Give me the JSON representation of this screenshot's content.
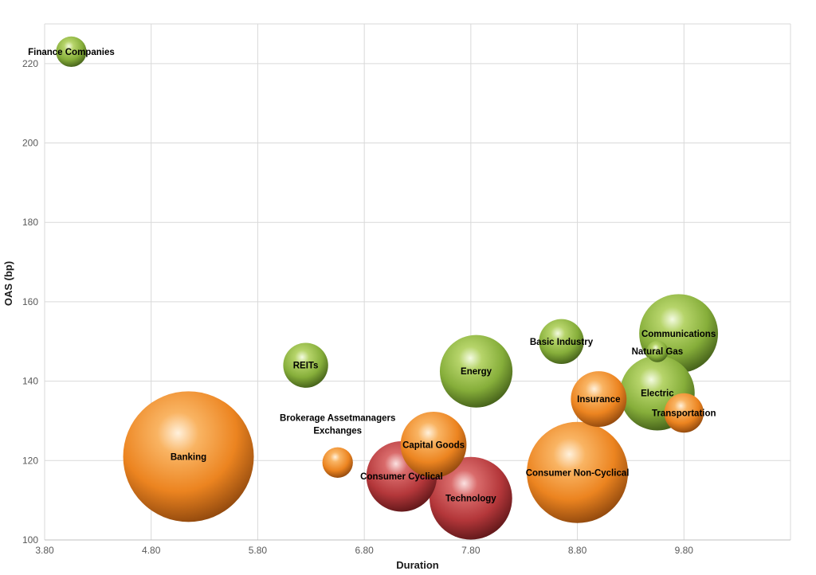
{
  "chart_data": {
    "type": "bubble",
    "xlabel": "Duration",
    "ylabel": "OAS (bp)",
    "xlim": [
      3.8,
      10.8
    ],
    "ylim": [
      100,
      230
    ],
    "x_ticks": [
      "3.80",
      "4.80",
      "5.80",
      "6.80",
      "7.80",
      "8.80",
      "9.80"
    ],
    "y_ticks": [
      "100",
      "120",
      "140",
      "160",
      "180",
      "200",
      "220"
    ],
    "grid": true,
    "legend": "none",
    "colors": {
      "green": "#8cb83a",
      "orange": "#ef8a1f",
      "red": "#b9383a"
    },
    "points": [
      {
        "label": "Finance Companies",
        "x": 4.05,
        "y": 223,
        "size": 3,
        "color": "green"
      },
      {
        "label": "REITs",
        "x": 6.25,
        "y": 144,
        "size": 6.5,
        "color": "green"
      },
      {
        "label": "Energy",
        "x": 7.85,
        "y": 142.5,
        "size": 17,
        "color": "green"
      },
      {
        "label": "Basic Industry",
        "x": 8.65,
        "y": 150,
        "size": 6.5,
        "color": "green"
      },
      {
        "label": "Natural Gas",
        "x": 9.55,
        "y": 147.5,
        "size": 1.5,
        "color": "green"
      },
      {
        "label": "Communications",
        "x": 9.75,
        "y": 152,
        "size": 20,
        "color": "green"
      },
      {
        "label": "Electric",
        "x": 9.55,
        "y": 137,
        "size": 18,
        "color": "green"
      },
      {
        "label": "Banking",
        "x": 5.15,
        "y": 121,
        "size": 55,
        "color": "orange"
      },
      {
        "label": "Brokerage Assetmanagers Exchanges",
        "lines": [
          "Brokerage Assetmanagers",
          "Exchanges"
        ],
        "x": 6.55,
        "y": 119.5,
        "size": 3,
        "color": "orange"
      },
      {
        "label": "Capital Goods",
        "x": 7.45,
        "y": 124,
        "size": 14,
        "color": "orange"
      },
      {
        "label": "Insurance",
        "x": 9.0,
        "y": 135.5,
        "size": 10,
        "color": "orange"
      },
      {
        "label": "Transportation",
        "x": 9.8,
        "y": 132,
        "size": 5,
        "color": "orange"
      },
      {
        "label": "Consumer Non-Cyclical",
        "x": 8.8,
        "y": 117,
        "size": 33,
        "color": "orange"
      },
      {
        "label": "Consumer Cyclical",
        "x": 7.15,
        "y": 116,
        "size": 16,
        "color": "red"
      },
      {
        "label": "Technology",
        "x": 7.8,
        "y": 110.5,
        "size": 22,
        "color": "red"
      }
    ]
  }
}
